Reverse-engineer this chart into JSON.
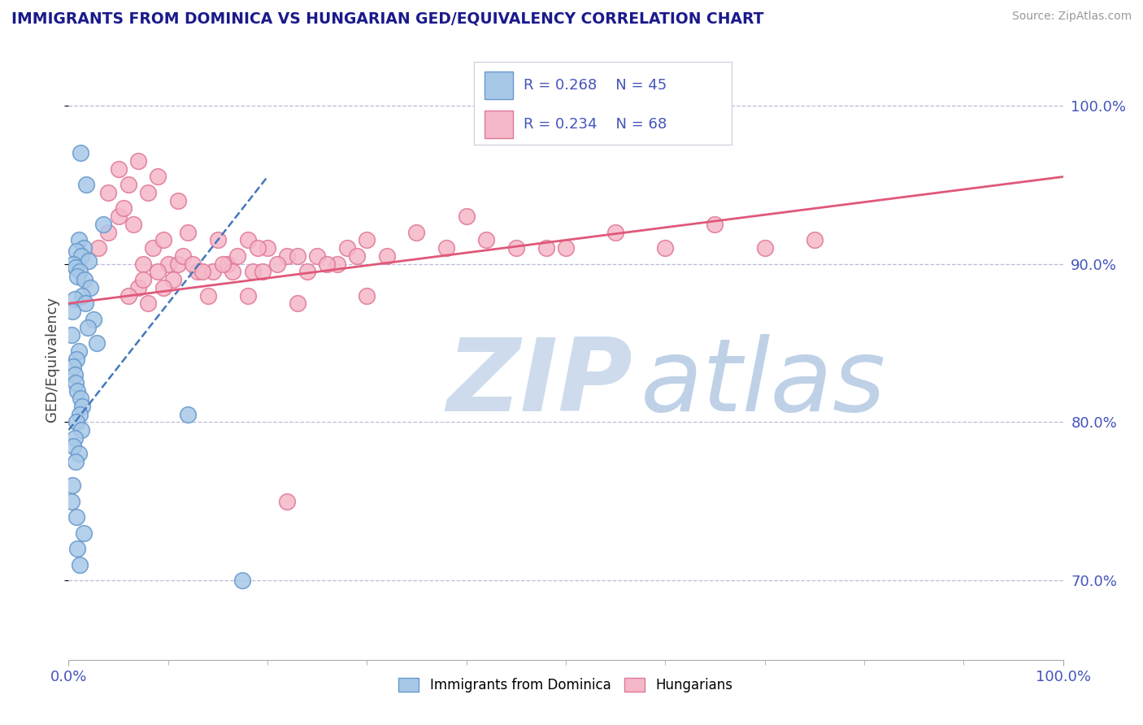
{
  "title": "IMMIGRANTS FROM DOMINICA VS HUNGARIAN GED/EQUIVALENCY CORRELATION CHART",
  "source": "Source: ZipAtlas.com",
  "ylabel": "GED/Equivalency",
  "legend_labels": [
    "Immigrants from Dominica",
    "Hungarians"
  ],
  "legend_R": [
    0.268,
    0.234
  ],
  "legend_N": [
    45,
    68
  ],
  "blue_color": "#a8c8e8",
  "blue_edge_color": "#6699cc",
  "pink_color": "#f5b8c8",
  "pink_edge_color": "#e07898",
  "blue_line_color": "#4477bb",
  "pink_line_color": "#e05878",
  "title_color": "#1a1a8c",
  "axis_label_color": "#4455bb",
  "ylabel_color": "#444444",
  "source_color": "#999999",
  "grid_color": "#bbbbdd",
  "watermark_zip_color": "#c8d8ec",
  "watermark_atlas_color": "#b8cce4",
  "xmin": 0,
  "xmax": 100,
  "ymin": 65,
  "ymax": 103,
  "ytick_vals": [
    70.0,
    80.0,
    90.0,
    100.0
  ],
  "blue_x": [
    1.2,
    1.8,
    3.5,
    1.0,
    1.5,
    0.8,
    1.3,
    2.0,
    0.5,
    0.7,
    1.1,
    0.9,
    1.6,
    2.2,
    1.4,
    0.6,
    1.7,
    0.4,
    2.5,
    1.9,
    0.3,
    2.8,
    1.0,
    0.8,
    0.5,
    0.6,
    0.7,
    0.9,
    1.2,
    1.4,
    1.1,
    0.8,
    1.3,
    0.6,
    0.5,
    1.0,
    0.7,
    0.4,
    0.3,
    0.8,
    1.5,
    0.9,
    1.1,
    12.0,
    17.5
  ],
  "blue_y": [
    97.0,
    95.0,
    92.5,
    91.5,
    91.0,
    90.8,
    90.5,
    90.2,
    90.0,
    89.8,
    89.5,
    89.2,
    89.0,
    88.5,
    88.0,
    87.8,
    87.5,
    87.0,
    86.5,
    86.0,
    85.5,
    85.0,
    84.5,
    84.0,
    83.5,
    83.0,
    82.5,
    82.0,
    81.5,
    81.0,
    80.5,
    80.0,
    79.5,
    79.0,
    78.5,
    78.0,
    77.5,
    76.0,
    75.0,
    74.0,
    73.0,
    72.0,
    71.0,
    80.5,
    70.0
  ],
  "pink_x": [
    5.0,
    8.0,
    6.0,
    3.0,
    12.0,
    15.0,
    7.0,
    20.0,
    10.0,
    18.0,
    4.0,
    9.0,
    25.0,
    11.0,
    6.5,
    14.0,
    8.5,
    22.0,
    7.5,
    16.0,
    30.0,
    13.0,
    5.5,
    19.0,
    9.5,
    35.0,
    17.0,
    11.5,
    28.0,
    6.0,
    40.0,
    21.0,
    14.5,
    24.0,
    55.0,
    8.0,
    45.0,
    18.5,
    12.5,
    32.0,
    50.0,
    27.0,
    7.5,
    38.0,
    16.5,
    65.0,
    23.0,
    10.5,
    42.0,
    15.5,
    70.0,
    26.0,
    9.5,
    48.0,
    19.5,
    75.0,
    29.0,
    13.5,
    60.0,
    22.0,
    5.0,
    7.0,
    9.0,
    11.0,
    4.0,
    18.0,
    23.0,
    30.0
  ],
  "pink_y": [
    93.0,
    94.5,
    95.0,
    91.0,
    92.0,
    91.5,
    88.5,
    91.0,
    90.0,
    91.5,
    94.5,
    89.5,
    90.5,
    90.0,
    92.5,
    88.0,
    91.0,
    90.5,
    90.0,
    90.0,
    91.5,
    89.5,
    93.5,
    91.0,
    91.5,
    92.0,
    90.5,
    90.5,
    91.0,
    88.0,
    93.0,
    90.0,
    89.5,
    89.5,
    92.0,
    87.5,
    91.0,
    89.5,
    90.0,
    90.5,
    91.0,
    90.0,
    89.0,
    91.0,
    89.5,
    92.5,
    90.5,
    89.0,
    91.5,
    90.0,
    91.0,
    90.0,
    88.5,
    91.0,
    89.5,
    91.5,
    90.5,
    89.5,
    91.0,
    75.0,
    96.0,
    96.5,
    95.5,
    94.0,
    92.0,
    88.0,
    87.5,
    88.0
  ],
  "blue_trend_x": [
    0,
    20
  ],
  "blue_trend_y": [
    79.5,
    95.5
  ],
  "pink_trend_x": [
    0,
    100
  ],
  "pink_trend_y": [
    87.5,
    95.5
  ]
}
